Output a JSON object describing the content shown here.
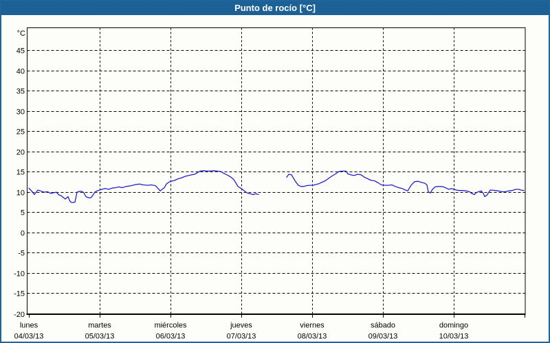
{
  "window": {
    "title": "Punto de rocío [°C]",
    "titlebar_bg": "#1d6297",
    "border_color": "#1f649a",
    "background": "#fdfefa"
  },
  "chart_data": {
    "type": "line",
    "title": "Punto de rocío [°C]",
    "ylabel": "°C",
    "ylim": [
      -20,
      50.5
    ],
    "y_ticks": [
      45,
      40,
      35,
      30,
      25,
      20,
      15,
      10,
      5,
      0,
      -5,
      -10,
      -15,
      -20
    ],
    "grid": true,
    "legend": "none",
    "line_color": "#2121c8",
    "axis_color": "#000000",
    "x_axis": {
      "xlim_days": [
        0,
        7
      ],
      "days": [
        {
          "label": "lunes",
          "date": "04/03/13"
        },
        {
          "label": "martes",
          "date": "05/03/13"
        },
        {
          "label": "miércoles",
          "date": "06/03/13"
        },
        {
          "label": "jueves",
          "date": "07/03/13"
        },
        {
          "label": "viernes",
          "date": "08/03/13"
        },
        {
          "label": "sábado",
          "date": "09/03/13"
        },
        {
          "label": "domingo",
          "date": "10/03/13"
        }
      ]
    },
    "series": [
      {
        "name": "punto de rocío",
        "unit": "°C",
        "segments": [
          [
            [
              0.0,
              10.9
            ],
            [
              0.049,
              10.0
            ],
            [
              0.078,
              9.3
            ],
            [
              0.126,
              10.4
            ],
            [
              0.165,
              10.2
            ],
            [
              0.214,
              9.9
            ],
            [
              0.262,
              10.0
            ],
            [
              0.311,
              9.6
            ],
            [
              0.359,
              9.8
            ],
            [
              0.388,
              9.9
            ],
            [
              0.417,
              9.3
            ],
            [
              0.456,
              9.0
            ],
            [
              0.485,
              8.6
            ],
            [
              0.515,
              8.2
            ],
            [
              0.553,
              8.8
            ],
            [
              0.573,
              7.9
            ],
            [
              0.592,
              7.4
            ],
            [
              0.621,
              7.3
            ],
            [
              0.65,
              7.4
            ],
            [
              0.68,
              9.9
            ],
            [
              0.718,
              10.1
            ],
            [
              0.748,
              10.1
            ],
            [
              0.777,
              9.7
            ],
            [
              0.806,
              8.8
            ],
            [
              0.845,
              8.5
            ],
            [
              0.874,
              8.5
            ],
            [
              0.903,
              9.1
            ],
            [
              0.932,
              9.9
            ],
            [
              0.961,
              10.2
            ],
            [
              1.0,
              10.4
            ],
            [
              1.029,
              10.6
            ],
            [
              1.078,
              10.8
            ],
            [
              1.126,
              10.6
            ],
            [
              1.175,
              10.9
            ],
            [
              1.223,
              11.0
            ],
            [
              1.272,
              11.2
            ],
            [
              1.32,
              11.0
            ],
            [
              1.369,
              11.3
            ],
            [
              1.417,
              11.4
            ],
            [
              1.466,
              11.6
            ],
            [
              1.515,
              11.8
            ],
            [
              1.563,
              11.9
            ],
            [
              1.612,
              11.7
            ],
            [
              1.68,
              11.6
            ],
            [
              1.728,
              11.7
            ],
            [
              1.786,
              11.5
            ],
            [
              1.825,
              10.8
            ],
            [
              1.854,
              10.2
            ],
            [
              1.883,
              10.6
            ],
            [
              1.913,
              11.0
            ],
            [
              1.942,
              11.9
            ],
            [
              1.971,
              12.3
            ],
            [
              2.01,
              12.6
            ],
            [
              2.058,
              12.8
            ],
            [
              2.107,
              13.2
            ],
            [
              2.155,
              13.4
            ],
            [
              2.204,
              13.8
            ],
            [
              2.252,
              14.0
            ],
            [
              2.301,
              14.2
            ],
            [
              2.34,
              14.3
            ],
            [
              2.379,
              14.7
            ],
            [
              2.417,
              15.1
            ],
            [
              2.466,
              15.2
            ],
            [
              2.515,
              15.1
            ],
            [
              2.563,
              15.1
            ],
            [
              2.612,
              15.2
            ],
            [
              2.66,
              15.1
            ],
            [
              2.709,
              15.0
            ],
            [
              2.757,
              14.5
            ],
            [
              2.806,
              14.1
            ],
            [
              2.854,
              13.6
            ],
            [
              2.893,
              13.0
            ],
            [
              2.922,
              12.2
            ],
            [
              2.951,
              11.3
            ],
            [
              3.0,
              10.8
            ],
            [
              3.029,
              10.4
            ],
            [
              3.058,
              10.0
            ],
            [
              3.097,
              9.6
            ],
            [
              3.126,
              9.5
            ],
            [
              3.165,
              9.3
            ],
            [
              3.204,
              9.5
            ],
            [
              3.243,
              9.3
            ]
          ],
          [
            [
              3.641,
              13.6
            ],
            [
              3.67,
              14.3
            ],
            [
              3.709,
              14.2
            ],
            [
              3.738,
              13.3
            ],
            [
              3.767,
              12.5
            ],
            [
              3.806,
              11.6
            ],
            [
              3.845,
              11.3
            ],
            [
              3.883,
              11.3
            ],
            [
              3.922,
              11.5
            ],
            [
              3.961,
              11.6
            ],
            [
              4.01,
              11.6
            ],
            [
              4.058,
              11.8
            ],
            [
              4.097,
              12.0
            ],
            [
              4.136,
              12.3
            ],
            [
              4.184,
              12.7
            ],
            [
              4.233,
              13.3
            ],
            [
              4.282,
              13.9
            ],
            [
              4.33,
              14.4
            ],
            [
              4.379,
              15.0
            ],
            [
              4.427,
              15.1
            ],
            [
              4.476,
              15.1
            ],
            [
              4.505,
              14.4
            ],
            [
              4.544,
              14.2
            ],
            [
              4.592,
              14.0
            ],
            [
              4.641,
              14.3
            ],
            [
              4.689,
              14.2
            ],
            [
              4.738,
              13.6
            ],
            [
              4.786,
              13.2
            ],
            [
              4.835,
              12.8
            ],
            [
              4.883,
              12.7
            ],
            [
              4.932,
              12.2
            ],
            [
              4.98,
              11.7
            ],
            [
              5.029,
              11.6
            ],
            [
              5.078,
              11.6
            ],
            [
              5.126,
              11.7
            ],
            [
              5.175,
              11.3
            ],
            [
              5.223,
              11.0
            ],
            [
              5.272,
              10.8
            ],
            [
              5.32,
              10.4
            ],
            [
              5.35,
              10.2
            ],
            [
              5.398,
              11.6
            ],
            [
              5.447,
              12.5
            ],
            [
              5.495,
              12.6
            ],
            [
              5.544,
              12.3
            ],
            [
              5.592,
              12.1
            ],
            [
              5.621,
              11.7
            ],
            [
              5.641,
              10.0
            ],
            [
              5.67,
              9.7
            ],
            [
              5.699,
              10.6
            ],
            [
              5.738,
              11.2
            ],
            [
              5.777,
              11.3
            ],
            [
              5.816,
              11.3
            ],
            [
              5.854,
              11.2
            ],
            [
              5.893,
              10.9
            ],
            [
              5.932,
              10.6
            ],
            [
              5.971,
              10.8
            ],
            [
              6.0,
              10.6
            ],
            [
              6.039,
              10.4
            ],
            [
              6.078,
              10.3
            ],
            [
              6.126,
              10.3
            ],
            [
              6.175,
              10.2
            ],
            [
              6.223,
              10.0
            ],
            [
              6.252,
              9.6
            ],
            [
              6.291,
              9.3
            ],
            [
              6.32,
              9.8
            ],
            [
              6.35,
              10.0
            ],
            [
              6.388,
              10.2
            ],
            [
              6.417,
              9.6
            ],
            [
              6.437,
              8.8
            ],
            [
              6.466,
              9.1
            ],
            [
              6.485,
              9.6
            ],
            [
              6.515,
              10.4
            ],
            [
              6.544,
              10.4
            ],
            [
              6.583,
              10.3
            ],
            [
              6.631,
              10.2
            ],
            [
              6.68,
              10.0
            ],
            [
              6.728,
              10.0
            ],
            [
              6.777,
              10.2
            ],
            [
              6.825,
              10.3
            ],
            [
              6.874,
              10.6
            ],
            [
              6.922,
              10.6
            ],
            [
              6.951,
              10.4
            ],
            [
              6.99,
              10.3
            ]
          ]
        ]
      }
    ]
  }
}
